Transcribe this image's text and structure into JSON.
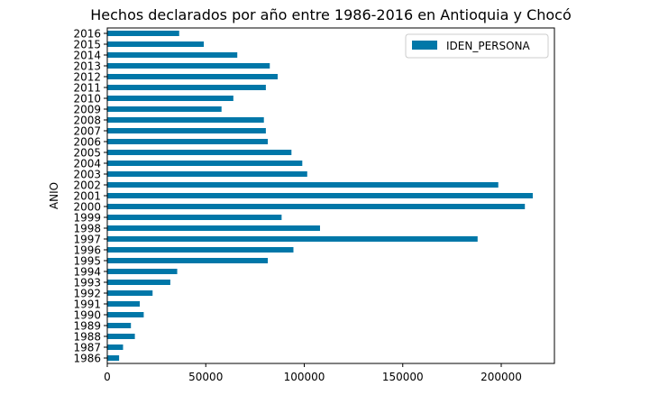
{
  "chart_data": {
    "type": "bar",
    "orientation": "horizontal",
    "title": "Hechos declarados por año entre 1986-2016 en Antioquia y Chocó",
    "xlabel": "",
    "ylabel": "ANIO",
    "xlim": [
      0,
      227000
    ],
    "x_ticks": [
      0,
      50000,
      100000,
      150000,
      200000
    ],
    "x_tick_labels": [
      "0",
      "50000",
      "100000",
      "150000",
      "200000"
    ],
    "grid": false,
    "legend_position": "top-right",
    "bar_color": "#0077a8",
    "categories": [
      "1986",
      "1987",
      "1988",
      "1989",
      "1990",
      "1991",
      "1992",
      "1993",
      "1994",
      "1995",
      "1996",
      "1997",
      "1998",
      "1999",
      "2000",
      "2001",
      "2002",
      "2003",
      "2004",
      "2005",
      "2006",
      "2007",
      "2008",
      "2009",
      "2010",
      "2011",
      "2012",
      "2013",
      "2014",
      "2015",
      "2016"
    ],
    "series": [
      {
        "name": "IDEN_PERSONA",
        "values": [
          6000,
          8000,
          14000,
          12000,
          18500,
          16500,
          23000,
          32000,
          35500,
          81500,
          94500,
          188000,
          108000,
          88500,
          212000,
          216000,
          198500,
          101500,
          99000,
          93500,
          81500,
          80500,
          79500,
          58000,
          64000,
          80500,
          86500,
          82500,
          66000,
          49000,
          36500
        ]
      }
    ]
  }
}
